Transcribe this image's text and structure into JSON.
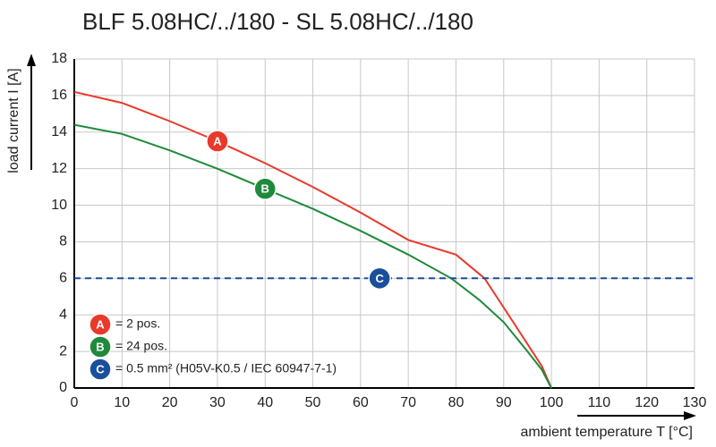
{
  "chart_data": {
    "type": "line",
    "title": "BLF 5.08HC/../180 - SL 5.08HC/../180",
    "xlabel": "ambient temperature T [°C]",
    "ylabel": "load current I [A]",
    "xlim": [
      0,
      130
    ],
    "ylim": [
      0,
      18
    ],
    "xticks": [
      0,
      10,
      20,
      30,
      40,
      50,
      60,
      70,
      80,
      90,
      100,
      110,
      120,
      130
    ],
    "yticks": [
      0,
      2,
      4,
      6,
      8,
      10,
      12,
      14,
      16,
      18
    ],
    "grid": true,
    "legend": "lower left",
    "series": [
      {
        "name": "A",
        "label": "= 2 pos.",
        "color": "#e8392b",
        "dashed": false,
        "x": [
          0,
          10,
          20,
          30,
          40,
          50,
          60,
          70,
          80,
          86,
          90,
          95,
          98,
          100
        ],
        "values": [
          16.2,
          15.6,
          14.6,
          13.5,
          12.3,
          11.0,
          9.6,
          8.1,
          7.3,
          6.0,
          4.4,
          2.4,
          1.2,
          0
        ]
      },
      {
        "name": "B",
        "label": "= 24 pos.",
        "color": "#1f8a3c",
        "dashed": false,
        "x": [
          0,
          10,
          20,
          30,
          40,
          50,
          60,
          70,
          79,
          85,
          90,
          95,
          98,
          100
        ],
        "values": [
          14.4,
          13.9,
          13.0,
          12.0,
          10.9,
          9.8,
          8.6,
          7.3,
          6.0,
          4.8,
          3.6,
          2.0,
          1.0,
          0
        ]
      },
      {
        "name": "C",
        "label": "= 0.5 mm² (H05V-K0.5 / IEC 60947-7-1)",
        "color": "#1a4f9c",
        "dashed": true,
        "x": [
          0,
          64,
          130
        ],
        "values": [
          6,
          6,
          6
        ]
      }
    ]
  }
}
